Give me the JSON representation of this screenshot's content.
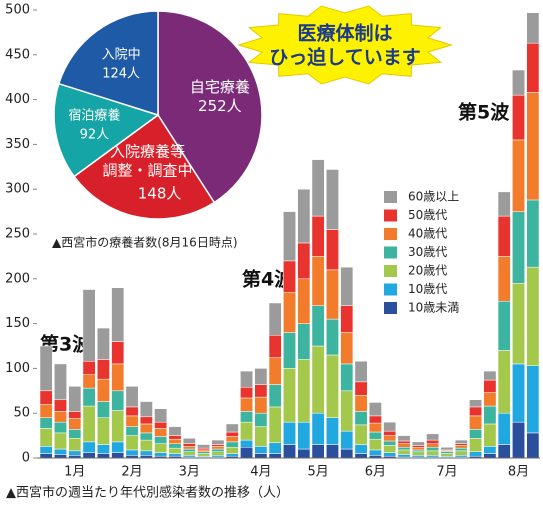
{
  "chart_data": [
    {
      "type": "bar",
      "stacked": true,
      "title": "▲西宮市の週当たり年代別感染者数の推移（人）",
      "categories": [
        null,
        null,
        "1月",
        null,
        null,
        null,
        "2月",
        null,
        null,
        null,
        "3月",
        null,
        null,
        null,
        null,
        "4月",
        null,
        null,
        null,
        "5月",
        null,
        null,
        null,
        "6月",
        null,
        null,
        null,
        null,
        "7月",
        null,
        null,
        null,
        null,
        "8月",
        null
      ],
      "series": [
        {
          "name": "10歳未満",
          "color": "#2b4f9c",
          "values": [
            5,
            4,
            3,
            6,
            5,
            6,
            3,
            3,
            2,
            2,
            1,
            1,
            1,
            2,
            12,
            5,
            5,
            15,
            10,
            15,
            15,
            10,
            5,
            3,
            2,
            1,
            1,
            1,
            1,
            1,
            2,
            5,
            15,
            40,
            28
          ]
        },
        {
          "name": "10歳代",
          "color": "#22a8e0",
          "values": [
            8,
            6,
            5,
            12,
            10,
            12,
            6,
            5,
            4,
            3,
            2,
            1,
            2,
            3,
            8,
            8,
            12,
            25,
            30,
            35,
            30,
            20,
            10,
            6,
            4,
            3,
            2,
            2,
            1,
            2,
            5,
            8,
            35,
            65,
            75
          ]
        },
        {
          "name": "20歳代",
          "color": "#a4c84b",
          "values": [
            20,
            18,
            14,
            40,
            30,
            35,
            16,
            12,
            10,
            6,
            4,
            3,
            4,
            7,
            20,
            22,
            40,
            60,
            70,
            75,
            70,
            45,
            22,
            12,
            8,
            5,
            4,
            5,
            3,
            5,
            15,
            25,
            70,
            90,
            110
          ]
        },
        {
          "name": "30歳代",
          "color": "#3cb49f",
          "values": [
            12,
            12,
            10,
            20,
            18,
            22,
            10,
            8,
            8,
            5,
            3,
            2,
            3,
            6,
            12,
            15,
            25,
            40,
            40,
            45,
            40,
            30,
            15,
            8,
            5,
            3,
            2,
            4,
            2,
            3,
            10,
            20,
            55,
            80,
            75
          ]
        },
        {
          "name": "40歳代",
          "color": "#f27b2c",
          "values": [
            15,
            12,
            12,
            15,
            25,
            30,
            12,
            10,
            9,
            5,
            3,
            2,
            3,
            6,
            15,
            18,
            30,
            45,
            50,
            55,
            55,
            35,
            18,
            10,
            6,
            4,
            3,
            4,
            1,
            3,
            15,
            15,
            50,
            80,
            120
          ]
        },
        {
          "name": "50歳代",
          "color": "#e8332f",
          "values": [
            15,
            13,
            8,
            15,
            22,
            25,
            10,
            8,
            7,
            4,
            3,
            2,
            2,
            5,
            12,
            14,
            25,
            35,
            40,
            45,
            45,
            30,
            15,
            8,
            5,
            3,
            2,
            4,
            1,
            2,
            10,
            14,
            45,
            50,
            55
          ]
        },
        {
          "name": "60歳以上",
          "color": "#9b9b9b",
          "values": [
            50,
            40,
            28,
            80,
            35,
            60,
            23,
            17,
            15,
            10,
            6,
            4,
            5,
            9,
            18,
            18,
            36,
            55,
            60,
            63,
            67,
            43,
            23,
            15,
            10,
            6,
            4,
            7,
            3,
            4,
            8,
            10,
            27,
            28,
            34
          ]
        }
      ],
      "ylim": [
        0,
        500
      ],
      "yticks": [
        0,
        50,
        100,
        150,
        200,
        250,
        300,
        350,
        400,
        450,
        500
      ],
      "grid": false,
      "legend": "right",
      "annotations": [
        "第3波",
        "第4波",
        "第5波"
      ]
    },
    {
      "type": "pie",
      "title": "▲西宮市の療養者数(8月16日時点)",
      "labels": [
        [
          "自宅療養"
        ],
        [
          "入院療養等",
          "調整・調査中"
        ],
        [
          "宿泊療養"
        ],
        [
          "入院中"
        ]
      ],
      "values": [
        252,
        148,
        92,
        124
      ],
      "value_labels": [
        "252人",
        "148人",
        "92人",
        "124人"
      ],
      "colors": [
        "#7b2a78",
        "#d8202a",
        "#16a5a6",
        "#1f5aa6"
      ]
    }
  ],
  "callout": [
    "医療体制は",
    "ひっ迫しています"
  ]
}
